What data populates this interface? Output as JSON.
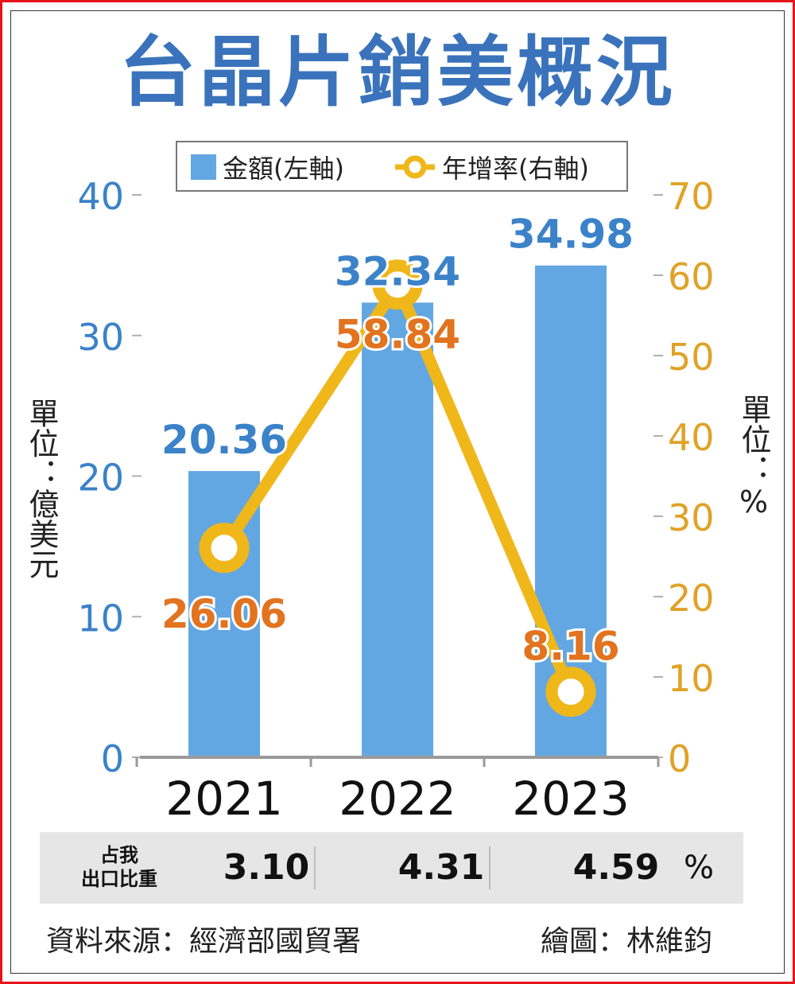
{
  "title": "台晶片銷美概況",
  "colors": {
    "title": "#3a73bb",
    "bar": "#63a7e2",
    "line": "#f0b71a",
    "line_label": "#e2731f",
    "left_axis": "#3b82c9",
    "right_axis": "#e0a226",
    "frame": "#e8141c"
  },
  "chart_data": {
    "type": "bar",
    "categories": [
      "2021",
      "2022",
      "2023"
    ],
    "series": [
      {
        "name": "金額(左軸)",
        "type": "bar",
        "axis": "left",
        "values": [
          20.36,
          32.34,
          34.98
        ],
        "labels": [
          "20.36",
          "32.34",
          "34.98"
        ]
      },
      {
        "name": "年增率(右軸)",
        "type": "line",
        "axis": "right",
        "values": [
          26.06,
          58.84,
          8.16
        ],
        "labels": [
          "26.06",
          "58.84",
          "8.16"
        ]
      }
    ],
    "left_axis": {
      "ylim": [
        0,
        40
      ],
      "ticks": [
        "0",
        "10",
        "20",
        "30",
        "40"
      ],
      "unit_label": "單位：億美元"
    },
    "right_axis": {
      "ylim": [
        0,
        70
      ],
      "ticks": [
        "0",
        "10",
        "20",
        "30",
        "40",
        "50",
        "60",
        "70"
      ],
      "unit_label": "單位：%"
    },
    "legend": {
      "position": "top",
      "marker_shapes": [
        "square",
        "circle-line"
      ]
    },
    "grid": false
  },
  "share_row": {
    "label": "占我\n出口比重",
    "values": [
      "3.10",
      "4.31",
      "4.59"
    ],
    "unit": "%"
  },
  "footer": {
    "source": "資料來源：經濟部國貿署",
    "credit": "繪圖：林維鈞"
  }
}
